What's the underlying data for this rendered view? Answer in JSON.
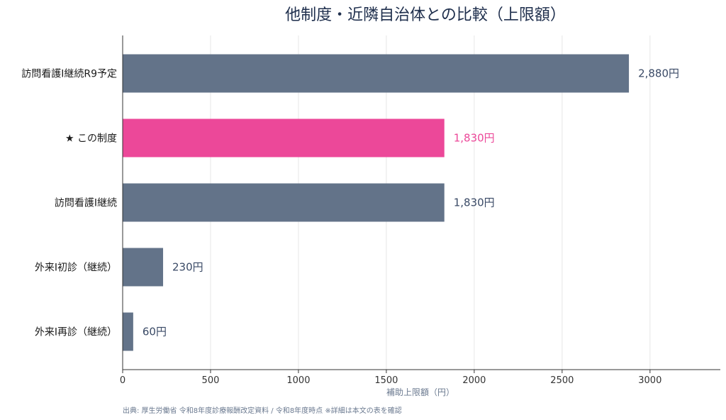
{
  "chart_data": {
    "type": "bar",
    "orientation": "horizontal",
    "title": "他制度・近隣自治体との比較（上限額）",
    "xlabel": "補助上限額（円）",
    "ylabel": "",
    "xlim": [
      0,
      3400
    ],
    "xticks": [
      0,
      500,
      1000,
      1500,
      2000,
      2500,
      3000
    ],
    "grid": true,
    "categories": [
      "訪問看護Ⅰ継続R9予定",
      "★ この制度",
      "訪問看護Ⅰ継続",
      "外来Ⅰ初診（継続）",
      "外来Ⅰ再診（継続）"
    ],
    "values": [
      2880,
      1830,
      1830,
      230,
      60
    ],
    "value_labels": [
      "2,880円",
      "1,830円",
      "1,830円",
      "230円",
      "60円"
    ],
    "highlight_index": 1,
    "colors": {
      "default": "#637389",
      "highlight": "#ec4899",
      "label_default": "#3a4a66",
      "label_highlight": "#ec4899"
    }
  },
  "source_note": "出典: 厚生労働省 令和8年度診療報酬改定資料 / 令和8年度時点 ※詳細は本文の表を確認"
}
